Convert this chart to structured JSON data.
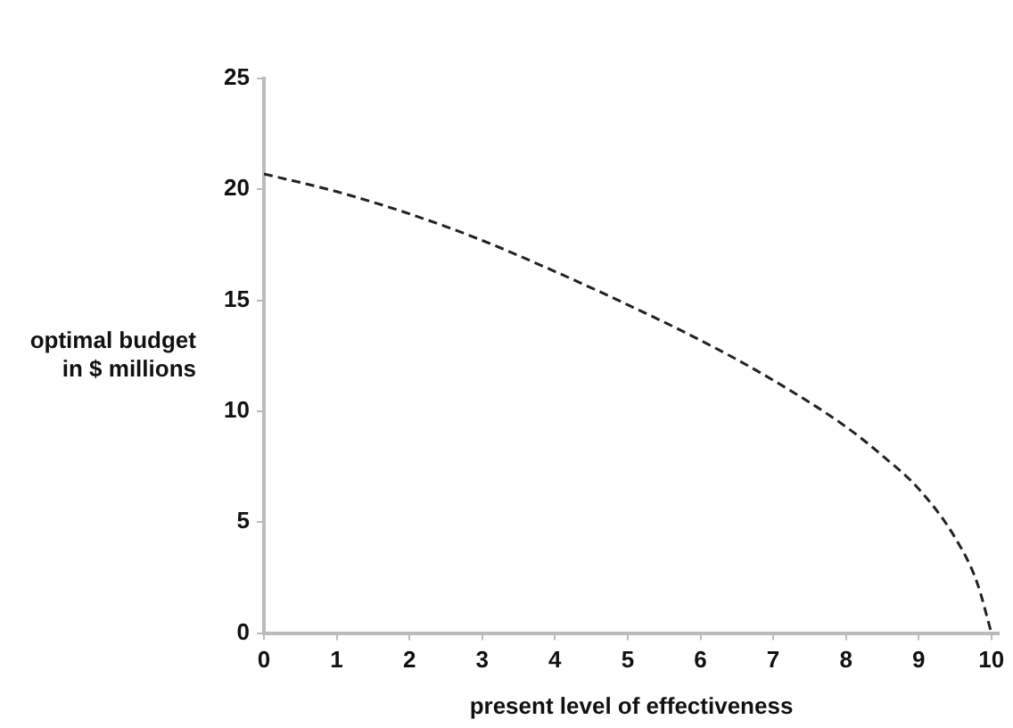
{
  "chart_data": {
    "type": "line",
    "xlabel": "present level of effectiveness",
    "ylabel": "optimal budget in $ millions",
    "x": [
      0,
      1,
      2,
      3,
      4,
      5,
      6,
      7,
      8,
      8.5,
      9,
      9.5,
      9.8,
      10
    ],
    "series": [
      {
        "color": "#222222",
        "values": [
          20.7,
          19.9,
          18.9,
          17.7,
          16.3,
          14.8,
          13.2,
          11.4,
          9.3,
          8.0,
          6.5,
          4.3,
          2.3,
          0
        ]
      }
    ],
    "xlim": [
      0,
      10.1
    ],
    "xticks": [
      0,
      1,
      2,
      3,
      4,
      5,
      6,
      7,
      8,
      9,
      10
    ],
    "ylim": [
      0,
      25
    ],
    "yticks": [
      0,
      5,
      10,
      15,
      20,
      25
    ],
    "grid": false,
    "legend": false,
    "marker": "none",
    "line_style": "dashed"
  }
}
